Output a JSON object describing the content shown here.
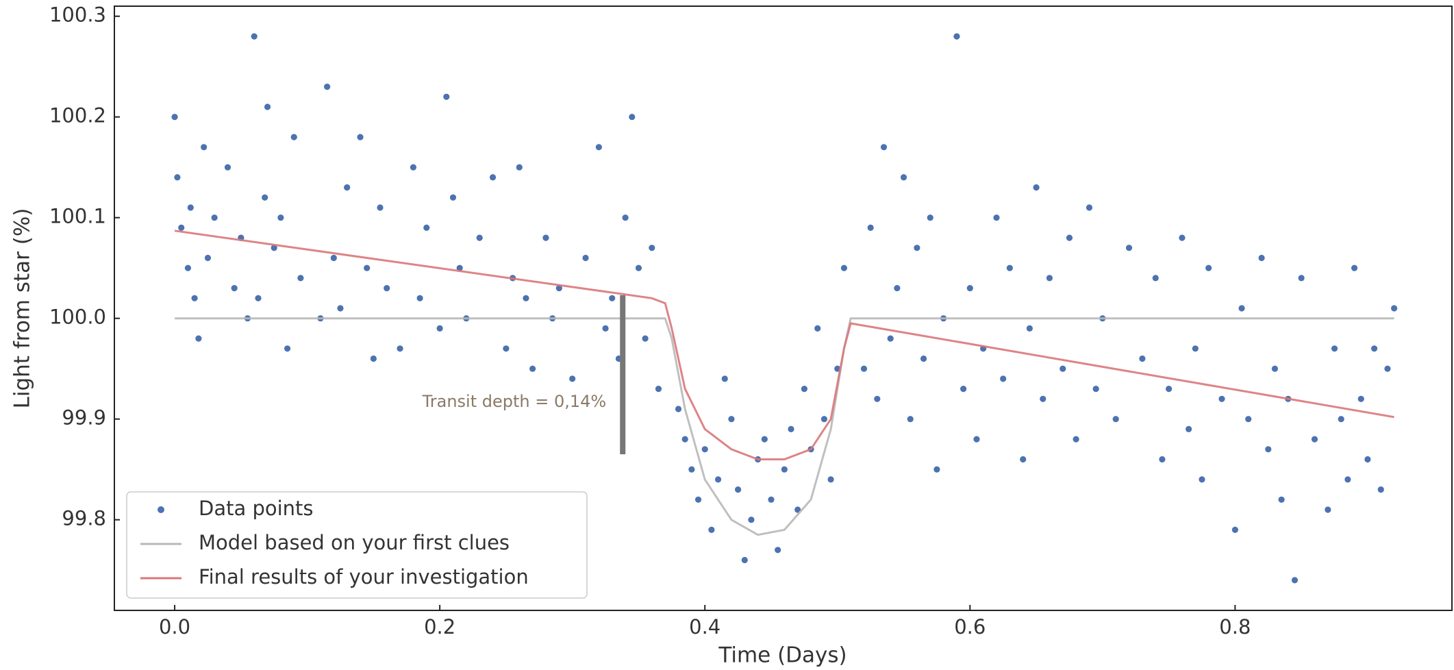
{
  "chart_data": {
    "type": "scatter",
    "xlabel": "Time (Days)",
    "ylabel": "Light from star (%)",
    "xlim": [
      -0.0455,
      0.9636
    ],
    "ylim": [
      99.71,
      100.31
    ],
    "xticks": [
      {
        "value": 0,
        "label": "0.0"
      },
      0.2,
      0.4,
      0.6,
      0.8
    ],
    "yticks": [
      99.8,
      99.9,
      {
        "value": 100,
        "label": "100.0"
      },
      100.1,
      100.2,
      100.3
    ],
    "grid": false,
    "legend": "lower left",
    "annotation": {
      "text": "Transit depth  = 0,14%",
      "color": "#8a7a66",
      "bar_color": "#777777",
      "x": 0.338,
      "y": [
        100.023,
        99.865
      ]
    },
    "series": [
      {
        "name": "Data points",
        "type": "scatter",
        "color": "#4c72b0",
        "x": [
          0.0,
          0.002,
          0.005,
          0.01,
          0.012,
          0.015,
          0.018,
          0.022,
          0.025,
          0.03,
          0.04,
          0.045,
          0.05,
          0.055,
          0.06,
          0.063,
          0.068,
          0.07,
          0.075,
          0.08,
          0.085,
          0.09,
          0.095,
          0.11,
          0.115,
          0.12,
          0.125,
          0.13,
          0.14,
          0.145,
          0.15,
          0.155,
          0.16,
          0.17,
          0.18,
          0.185,
          0.19,
          0.2,
          0.205,
          0.21,
          0.215,
          0.22,
          0.23,
          0.24,
          0.25,
          0.255,
          0.26,
          0.265,
          0.27,
          0.28,
          0.285,
          0.29,
          0.3,
          0.31,
          0.32,
          0.325,
          0.33,
          0.335,
          0.34,
          0.345,
          0.35,
          0.355,
          0.36,
          0.365,
          0.38,
          0.385,
          0.39,
          0.395,
          0.4,
          0.405,
          0.41,
          0.415,
          0.42,
          0.425,
          0.43,
          0.435,
          0.44,
          0.445,
          0.45,
          0.455,
          0.46,
          0.465,
          0.47,
          0.475,
          0.48,
          0.485,
          0.49,
          0.495,
          0.5,
          0.505,
          0.52,
          0.525,
          0.53,
          0.535,
          0.54,
          0.545,
          0.55,
          0.555,
          0.56,
          0.565,
          0.57,
          0.575,
          0.58,
          0.59,
          0.595,
          0.6,
          0.605,
          0.61,
          0.62,
          0.625,
          0.63,
          0.64,
          0.645,
          0.65,
          0.655,
          0.66,
          0.67,
          0.675,
          0.68,
          0.69,
          0.695,
          0.7,
          0.71,
          0.72,
          0.73,
          0.74,
          0.745,
          0.75,
          0.76,
          0.765,
          0.77,
          0.775,
          0.78,
          0.79,
          0.8,
          0.805,
          0.81,
          0.82,
          0.825,
          0.83,
          0.835,
          0.84,
          0.845,
          0.85,
          0.86,
          0.87,
          0.875,
          0.88,
          0.885,
          0.89,
          0.895,
          0.9,
          0.905,
          0.91,
          0.915,
          0.92
        ],
        "values": [
          100.2,
          100.14,
          100.09,
          100.05,
          100.11,
          100.02,
          99.98,
          100.17,
          100.06,
          100.1,
          100.15,
          100.03,
          100.08,
          100.0,
          100.28,
          100.02,
          100.12,
          100.21,
          100.07,
          100.1,
          99.97,
          100.18,
          100.04,
          100.0,
          100.23,
          100.06,
          100.01,
          100.13,
          100.18,
          100.05,
          99.96,
          100.11,
          100.03,
          99.97,
          100.15,
          100.02,
          100.09,
          99.99,
          100.22,
          100.12,
          100.05,
          100.0,
          100.08,
          100.14,
          99.97,
          100.04,
          100.15,
          100.02,
          99.95,
          100.08,
          100.0,
          100.03,
          99.94,
          100.06,
          100.17,
          99.99,
          100.02,
          99.96,
          100.1,
          100.2,
          100.05,
          99.98,
          100.07,
          99.93,
          99.91,
          99.88,
          99.85,
          99.82,
          99.87,
          99.79,
          99.84,
          99.94,
          99.9,
          99.83,
          99.76,
          99.8,
          99.86,
          99.88,
          99.82,
          99.77,
          99.85,
          99.89,
          99.81,
          99.93,
          99.87,
          99.99,
          99.9,
          99.84,
          99.95,
          100.05,
          99.95,
          100.09,
          99.92,
          100.17,
          99.98,
          100.03,
          100.14,
          99.9,
          100.07,
          99.96,
          100.1,
          99.85,
          100.0,
          100.28,
          99.93,
          100.03,
          99.88,
          99.97,
          100.1,
          99.94,
          100.05,
          99.86,
          99.99,
          100.13,
          99.92,
          100.04,
          99.95,
          100.08,
          99.88,
          100.11,
          99.93,
          100.0,
          99.9,
          100.07,
          99.96,
          100.04,
          99.86,
          99.93,
          100.08,
          99.89,
          99.97,
          99.84,
          100.05,
          99.92,
          99.79,
          100.01,
          99.9,
          100.06,
          99.87,
          99.95,
          99.82,
          99.92,
          99.74,
          100.04,
          99.88,
          99.81,
          99.97,
          99.9,
          99.84,
          100.05,
          99.92,
          99.86,
          99.97,
          99.83,
          99.95,
          100.01
        ]
      },
      {
        "name": "Model based on your first clues",
        "type": "line",
        "color": "#b8b8b8",
        "x": [
          0,
          0.37,
          0.375,
          0.385,
          0.4,
          0.42,
          0.44,
          0.46,
          0.48,
          0.495,
          0.505,
          0.51,
          0.92
        ],
        "values": [
          100,
          100,
          99.98,
          99.91,
          99.84,
          99.8,
          99.785,
          99.79,
          99.82,
          99.89,
          99.97,
          100,
          100
        ]
      },
      {
        "name": "Final results of your investigation",
        "type": "line",
        "color": "#d9777a",
        "x": [
          0,
          0.36,
          0.37,
          0.375,
          0.385,
          0.4,
          0.42,
          0.44,
          0.46,
          0.48,
          0.495,
          0.505,
          0.51,
          0.92
        ],
        "values": [
          100.087,
          100.02,
          100.015,
          99.99,
          99.93,
          99.89,
          99.87,
          99.86,
          99.86,
          99.87,
          99.9,
          99.97,
          99.995,
          99.902
        ]
      }
    ]
  }
}
